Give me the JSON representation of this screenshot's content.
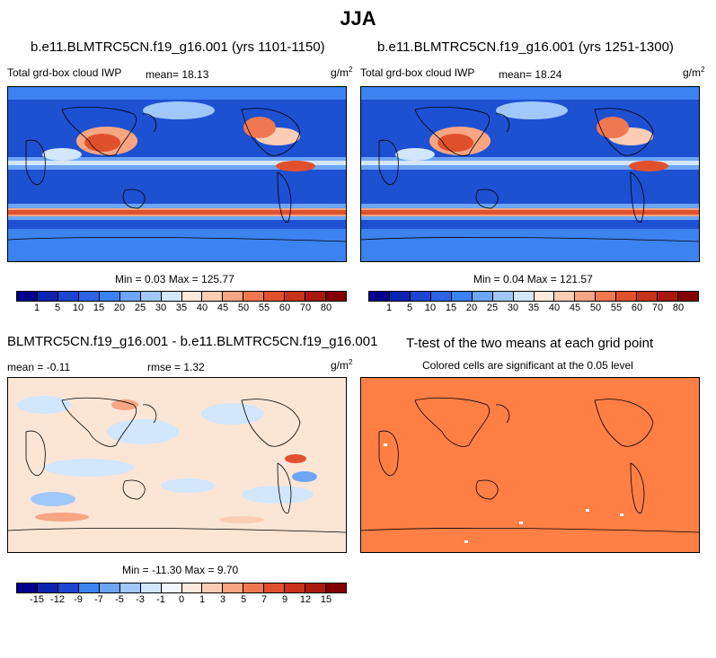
{
  "main_title": "JJA",
  "panels": [
    {
      "title": "b.e11.BLMTRC5CN.f19_g16.001 (yrs 1101-1150)",
      "left_label": "Total grd-box cloud IWP",
      "mean_label": "mean=",
      "mean_value": "18.13",
      "unit_base": "g/m",
      "unit_sup": "2",
      "minmax": "Min =  0.03 Max = 125.77"
    },
    {
      "title": "b.e11.BLMTRC5CN.f19_g16.001 (yrs 1251-1300)",
      "left_label": "Total grd-box cloud IWP",
      "mean_label": "mean=",
      "mean_value": "18.24",
      "unit_base": "g/m",
      "unit_sup": "2",
      "minmax": "Min =  0.04 Max = 121.57"
    },
    {
      "title": "BLMTRC5CN.f19_g16.001 - b.e11.BLMTRC5CN.f19_g16.001",
      "mean_label": "mean =",
      "mean_value": "-0.11",
      "rmse_label": "rmse =",
      "rmse_value": "1.32",
      "unit_base": "g/m",
      "unit_sup": "2",
      "minmax": "Min = -11.30 Max =   9.70"
    },
    {
      "title": "T-test of the two means at each grid point",
      "subtitle": "Colored cells are significant at the 0.05 level"
    }
  ],
  "colorbar_abs": {
    "colors": [
      "#00008c",
      "#0a25b0",
      "#1e46d2",
      "#2d64e6",
      "#3c82f0",
      "#6ea5f5",
      "#a0c8fa",
      "#d2e6fc",
      "#fdeadc",
      "#fbcdb4",
      "#f7a582",
      "#f07850",
      "#e1502d",
      "#c83219",
      "#aa190f",
      "#820000"
    ],
    "labels": [
      "1",
      "5",
      "10",
      "15",
      "20",
      "25",
      "30",
      "35",
      "40",
      "45",
      "50",
      "55",
      "60",
      "70",
      "80"
    ]
  },
  "colorbar_diff": {
    "colors": [
      "#00008c",
      "#0a25b0",
      "#1e46d2",
      "#3c82f0",
      "#6ea5f5",
      "#a0c8fa",
      "#d2e6fc",
      "#eef5fd",
      "#fdeadc",
      "#fbcdb4",
      "#f7a582",
      "#f07850",
      "#e1502d",
      "#c83219",
      "#aa190f",
      "#820000"
    ],
    "labels": [
      "-15",
      "-12",
      "-9",
      "-7",
      "-5",
      "-3",
      "-1",
      "0",
      "1",
      "3",
      "5",
      "7",
      "9",
      "12",
      "15"
    ]
  },
  "colors": {
    "ttest_fill": "#ff7f45",
    "ocean_low": "#1e50d2",
    "diff_bg": "#fbe6d6"
  }
}
